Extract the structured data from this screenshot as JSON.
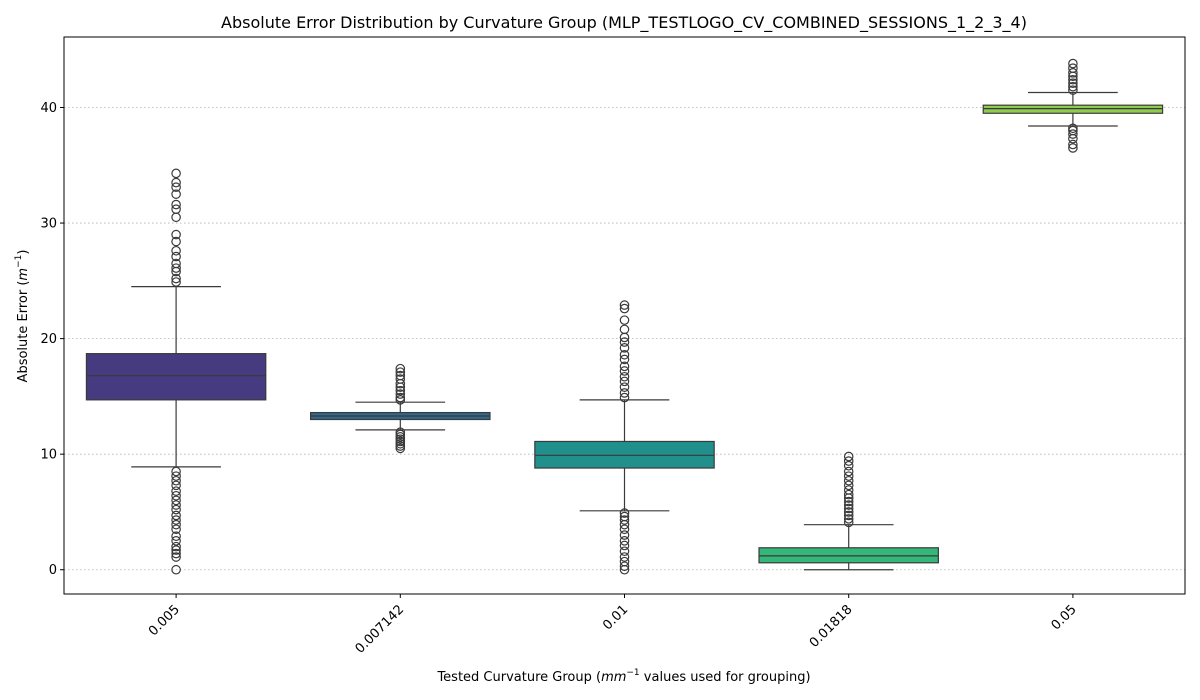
{
  "chart_data": {
    "type": "box",
    "title": "Absolute Error Distribution by Curvature Group (MLP_TESTLOGO_CV_COMBINED_SESSIONS_1_2_3_4)",
    "xlabel_prefix": "Tested Curvature Group (",
    "xlabel_math_base": "mm",
    "xlabel_math_exp": "−1",
    "xlabel_suffix": " values used for grouping)",
    "ylabel_prefix": "Absolute Error (",
    "ylabel_math_base": "m",
    "ylabel_math_exp": "−1",
    "ylabel_suffix": ")",
    "ylim": [
      -2.1,
      46.1
    ],
    "yticks": [
      0,
      10,
      20,
      30,
      40
    ],
    "grid": "y",
    "categories": [
      "0.005",
      "0.007142",
      "0.01",
      "0.01818",
      "0.05"
    ],
    "boxes": [
      {
        "label": "0.005",
        "color": "#463a80",
        "whisker_low": 8.9,
        "q1": 14.7,
        "median": 16.8,
        "q3": 18.7,
        "whisker_high": 24.5,
        "outliers": [
          0.0,
          1.1,
          1.4,
          1.7,
          2.0,
          2.5,
          2.9,
          3.5,
          3.9,
          4.3,
          4.7,
          5.2,
          5.6,
          6.0,
          6.4,
          6.8,
          7.3,
          7.7,
          8.1,
          8.5,
          24.9,
          25.2,
          25.8,
          26.1,
          26.5,
          27.1,
          27.6,
          28.4,
          29.0,
          30.5,
          31.2,
          31.6,
          32.5,
          33.1,
          33.5,
          34.3
        ]
      },
      {
        "label": "0.007142",
        "color": "#31688e",
        "whisker_low": 12.1,
        "q1": 13.0,
        "median": 13.3,
        "q3": 13.6,
        "whisker_high": 14.5,
        "outliers": [
          10.5,
          10.7,
          10.9,
          11.1,
          11.3,
          11.5,
          11.7,
          11.9,
          14.7,
          14.9,
          15.2,
          15.5,
          15.8,
          16.1,
          16.5,
          16.8,
          17.1,
          17.4
        ]
      },
      {
        "label": "0.01",
        "color": "#21908d",
        "whisker_low": 5.1,
        "q1": 8.8,
        "median": 9.9,
        "q3": 11.1,
        "whisker_high": 14.7,
        "outliers": [
          0.0,
          0.3,
          0.7,
          1.1,
          1.6,
          2.1,
          2.5,
          3.0,
          3.5,
          3.9,
          4.3,
          4.6,
          4.9,
          14.9,
          15.3,
          15.8,
          16.3,
          16.7,
          17.2,
          17.6,
          18.2,
          18.6,
          19.2,
          19.7,
          20.1,
          20.8,
          21.6,
          22.6,
          22.9
        ]
      },
      {
        "label": "0.01818",
        "color": "#35b779",
        "whisker_low": 0.0,
        "q1": 0.6,
        "median": 1.2,
        "q3": 1.9,
        "whisker_high": 3.9,
        "outliers": [
          4.1,
          4.4,
          4.7,
          5.0,
          5.3,
          5.6,
          5.9,
          6.2,
          6.5,
          6.9,
          7.3,
          7.7,
          8.1,
          8.5,
          9.0,
          9.4,
          9.8
        ]
      },
      {
        "label": "0.05",
        "color": "#8fcc4e",
        "whisker_low": 38.4,
        "q1": 39.5,
        "median": 39.9,
        "q3": 40.2,
        "whisker_high": 41.3,
        "outliers": [
          36.5,
          36.8,
          37.3,
          37.7,
          38.0,
          38.2,
          41.5,
          41.8,
          42.1,
          42.4,
          42.7,
          43.0,
          43.4,
          43.8
        ]
      }
    ]
  }
}
